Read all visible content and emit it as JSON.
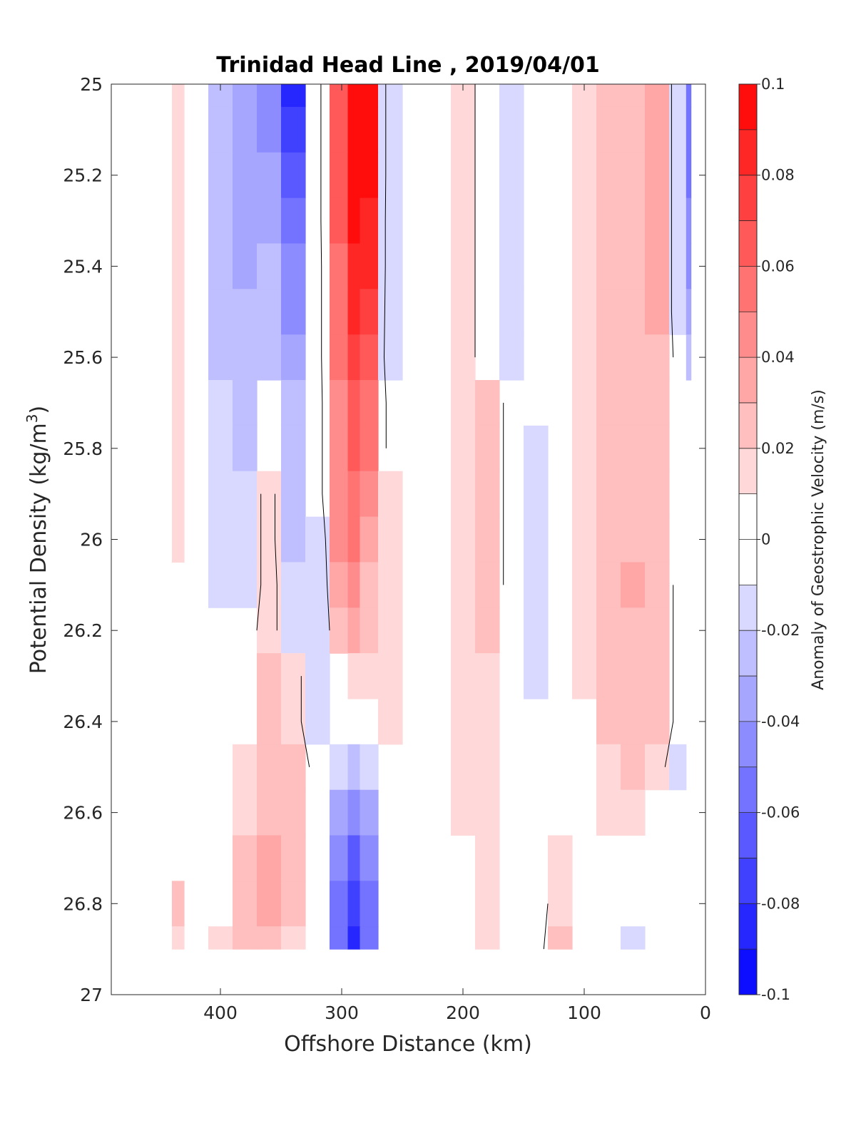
{
  "chart_data": {
    "type": "heatmap",
    "subtype": "filled-contour",
    "title": "Trinidad Head Line , 2019/04/01",
    "xlabel": "Offshore Distance (km)",
    "ylabel_main": "Potential Density (kg/m",
    "ylabel_sup": "3",
    "ylabel_close": ")",
    "colorbar_label": "Anomaly of Geostrophic Velocity (m/s)",
    "xlim": [
      490,
      0
    ],
    "x_reversed": true,
    "ylim": [
      25,
      27
    ],
    "y_reversed": true,
    "x_ticks": [
      400,
      300,
      200,
      100,
      0
    ],
    "x_tick_labels": [
      "400",
      "300",
      "200",
      "100",
      "0"
    ],
    "y_ticks": [
      25,
      25.2,
      25.4,
      25.6,
      25.8,
      26,
      26.2,
      26.4,
      26.6,
      26.8,
      27
    ],
    "y_tick_labels": [
      "25",
      "25.2",
      "25.4",
      "25.6",
      "25.8",
      "26",
      "26.2",
      "26.4",
      "26.6",
      "26.8",
      "27"
    ],
    "colorbar_ticks": [
      0.1,
      0.08,
      0.06,
      0.04,
      0.02,
      0,
      -0.02,
      -0.04,
      -0.06,
      -0.08,
      -0.1
    ],
    "colorbar_tick_labels": [
      "0.1",
      "0.08",
      "0.06",
      "0.04",
      "0.02",
      "0",
      "-0.02",
      "-0.04",
      "-0.06",
      "-0.08",
      "-0.1"
    ],
    "colorbar_range": [
      -0.1,
      0.1
    ],
    "colorbar_levels": 20,
    "colors": {
      "positive": "#ff0000",
      "negative": "#0000ff",
      "zero": "#ffffff",
      "contour": "#000000"
    },
    "data_extent": {
      "x": [
        440,
        12
      ],
      "y": [
        25,
        26.9
      ]
    },
    "x": [
      440,
      420,
      400,
      380,
      360,
      340,
      320,
      300,
      290,
      280,
      260,
      240,
      220,
      200,
      180,
      160,
      140,
      120,
      100,
      80,
      60,
      40,
      20,
      12
    ],
    "y": [
      25,
      25.1,
      25.2,
      25.3,
      25.4,
      25.5,
      25.6,
      25.7,
      25.8,
      25.9,
      26,
      26.1,
      26.2,
      26.3,
      26.4,
      26.5,
      26.6,
      26.7,
      26.8,
      26.9
    ],
    "values": [
      [
        0.01,
        0,
        -0.03,
        -0.04,
        -0.05,
        -0.09,
        -0.01,
        0.06,
        0.1,
        0.09,
        -0.02,
        0,
        0,
        0.01,
        -0.01,
        -0.02,
        -0.01,
        0,
        0.01,
        0.02,
        0.02,
        0.03,
        -0.02,
        -0.06
      ],
      [
        0.01,
        0,
        -0.03,
        -0.04,
        -0.05,
        -0.08,
        -0.01,
        0.06,
        0.1,
        0.09,
        -0.02,
        0,
        0,
        0.01,
        -0.01,
        -0.02,
        -0.01,
        0,
        0.01,
        0.02,
        0.02,
        0.03,
        -0.02,
        -0.06
      ],
      [
        0.01,
        0,
        -0.03,
        -0.04,
        -0.04,
        -0.07,
        -0.01,
        0.06,
        0.09,
        0.09,
        -0.02,
        0,
        0,
        0.01,
        -0.01,
        -0.02,
        -0.01,
        0,
        0.01,
        0.02,
        0.02,
        0.03,
        -0.02,
        -0.06
      ],
      [
        0.01,
        0,
        -0.03,
        -0.04,
        -0.04,
        -0.06,
        -0.01,
        0.06,
        0.09,
        0.08,
        -0.02,
        0,
        0,
        0.01,
        -0.01,
        -0.02,
        -0.01,
        0,
        0.01,
        0.02,
        0.02,
        0.03,
        -0.02,
        -0.05
      ],
      [
        0.01,
        0,
        -0.03,
        -0.04,
        -0.03,
        -0.05,
        -0.01,
        0.05,
        0.08,
        0.08,
        -0.02,
        0,
        0,
        0.01,
        -0.01,
        -0.02,
        -0.01,
        0,
        0.01,
        0.02,
        0.02,
        0.03,
        -0.02,
        -0.05
      ],
      [
        0.01,
        0,
        -0.03,
        -0.03,
        -0.03,
        -0.05,
        -0.01,
        0.05,
        0.08,
        0.07,
        -0.02,
        0,
        0,
        0.01,
        -0.01,
        -0.02,
        -0.01,
        0,
        0.01,
        0.02,
        0.02,
        0.03,
        -0.02,
        -0.04
      ],
      [
        0.01,
        0,
        -0.03,
        -0.03,
        -0.03,
        -0.04,
        -0.01,
        0.05,
        0.07,
        0.06,
        -0.02,
        0,
        0,
        0.01,
        -0.01,
        -0.02,
        -0.01,
        0,
        0.01,
        0.02,
        0.02,
        0.02,
        -0.01,
        -0.03
      ],
      [
        0.01,
        0,
        -0.02,
        -0.03,
        0,
        -0.03,
        -0.01,
        0.04,
        0.06,
        0.05,
        -0.01,
        0,
        0,
        0.01,
        0.02,
        -0.01,
        -0.01,
        0,
        0.01,
        0.02,
        0.02,
        0.02,
        0,
        0
      ],
      [
        0.01,
        0,
        -0.02,
        -0.03,
        0,
        -0.03,
        -0.01,
        0.04,
        0.06,
        0.05,
        -0.01,
        0,
        0,
        0.01,
        0.02,
        -0.01,
        -0.02,
        0,
        0.01,
        0.02,
        0.02,
        0.02,
        0,
        0
      ],
      [
        0.01,
        0,
        -0.02,
        -0.02,
        0.01,
        -0.03,
        -0.01,
        0.04,
        0.05,
        0.04,
        0.01,
        0,
        0,
        0.01,
        0.02,
        -0.01,
        -0.02,
        0,
        0.01,
        0.02,
        0.02,
        0.02,
        0,
        0
      ],
      [
        0.01,
        0,
        -0.02,
        -0.02,
        0.01,
        -0.03,
        -0.02,
        0.04,
        0.05,
        0.03,
        0.01,
        0,
        0,
        0.01,
        0.02,
        -0.01,
        -0.02,
        0,
        0.01,
        0.02,
        0.02,
        0.02,
        0,
        0
      ],
      [
        -0.01,
        -0.01,
        -0.02,
        -0.02,
        0.01,
        -0.02,
        -0.02,
        0.03,
        0.04,
        0.02,
        0.01,
        0,
        0,
        0.01,
        0.02,
        -0.01,
        -0.02,
        0,
        0.01,
        0.02,
        0.03,
        0.02,
        -0.01,
        0
      ],
      [
        -0.01,
        -0.01,
        -0.01,
        -0.01,
        0.01,
        -0.02,
        -0.02,
        0.02,
        0.03,
        0.02,
        0.01,
        0,
        0,
        0.01,
        0.02,
        0,
        -0.02,
        0,
        0.01,
        0.02,
        0.02,
        0.02,
        -0.01,
        0
      ],
      [
        -0.01,
        0,
        -0.01,
        0,
        0.02,
        0.01,
        -0.02,
        0,
        0.01,
        0.01,
        0.01,
        0,
        0,
        0.01,
        0.01,
        0,
        -0.02,
        0,
        0.01,
        0.02,
        0.02,
        0.02,
        -0.01,
        0
      ],
      [
        -0.01,
        0,
        0,
        0,
        0.02,
        0.01,
        -0.02,
        -0.01,
        0,
        0,
        0.01,
        0,
        0,
        0.01,
        0.01,
        0,
        -0.01,
        0,
        0,
        0.02,
        0.02,
        0.02,
        -0.01,
        0
      ],
      [
        0,
        0,
        0,
        0.01,
        0.02,
        0.02,
        -0.01,
        -0.02,
        -0.03,
        -0.02,
        0,
        0,
        0,
        0.01,
        0.01,
        0,
        0,
        0,
        0,
        0.01,
        0.02,
        0.01,
        -0.02,
        0
      ],
      [
        0,
        0,
        0,
        0.01,
        0.02,
        0.02,
        0,
        -0.04,
        -0.05,
        -0.04,
        0,
        0,
        0,
        0.01,
        0.01,
        0,
        0,
        0,
        0,
        0.01,
        0.01,
        -0.01,
        -0.01,
        0
      ],
      [
        0,
        0,
        0,
        0.02,
        0.03,
        0.02,
        0,
        -0.05,
        -0.07,
        -0.05,
        0,
        0,
        0,
        0,
        0.01,
        0,
        0,
        0.01,
        0,
        -0.01,
        -0.01,
        -0.01,
        -0.01,
        0
      ],
      [
        0.02,
        0,
        0,
        0.02,
        0.03,
        0.02,
        0,
        -0.06,
        -0.08,
        -0.06,
        0,
        0,
        0,
        0,
        0.01,
        0,
        -0.01,
        0.01,
        0,
        -0.01,
        -0.01,
        -0.01,
        -0.01,
        0
      ],
      [
        0.01,
        0,
        0.01,
        0.02,
        0.02,
        0.01,
        0,
        -0.06,
        -0.09,
        -0.06,
        0,
        0,
        0,
        0,
        0.01,
        0,
        -0.01,
        0.02,
        0,
        -0.01,
        -0.02,
        -0.01,
        -0.01,
        0
      ]
    ]
  }
}
